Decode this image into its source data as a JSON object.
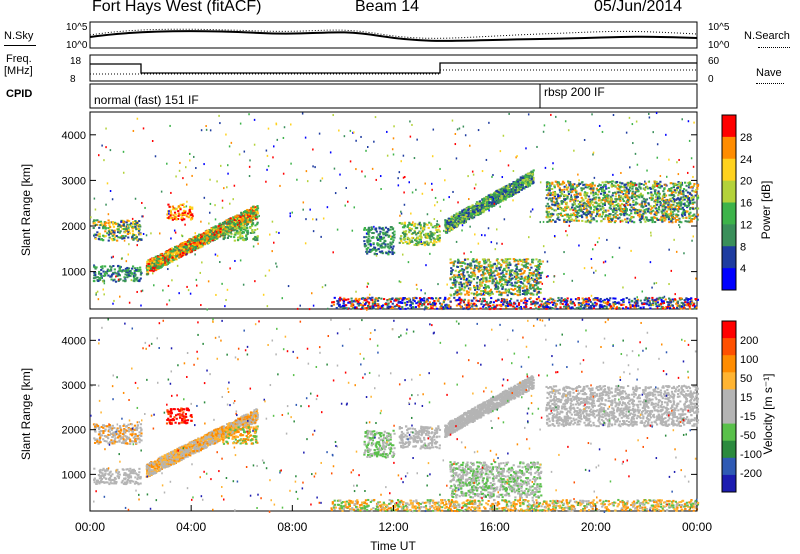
{
  "header": {
    "station": "Fort Hays West (fitACF)",
    "beam": "Beam 14",
    "date": "05/Jun/2014"
  },
  "strip_labels": {
    "nsky": "N.Sky",
    "nsearch": "N.Search",
    "freq": "Freq.",
    "freq_unit": "[MHz]",
    "nave": "Nave",
    "cpid": "CPID",
    "noise_ticks": [
      "10^5",
      "10^0"
    ],
    "freq_ticks": [
      "18",
      "8"
    ],
    "nave_ticks": [
      "60",
      "0"
    ],
    "cpid_modes": [
      "normal (fast) 151 IF",
      "rbsp 200 IF"
    ]
  },
  "colors": {
    "power": [
      "#0000ff",
      "#1e3ca0",
      "#3a8f5a",
      "#3db34a",
      "#b3d23a",
      "#ffd21e",
      "#ff8c00",
      "#ff0000"
    ],
    "velocity": [
      "#1c1cb0",
      "#2f5ab4",
      "#2b8a3e",
      "#59c04a",
      "#b4b4b4",
      "#b4b4b4",
      "#ffb432",
      "#ff8c00",
      "#ff5000",
      "#ff0000"
    ]
  },
  "chart_data": [
    {
      "type": "heatmap",
      "panel": "power",
      "ylabel": "Slant Range [km]",
      "xlim": [
        0,
        24
      ],
      "ylim": [
        180,
        4500
      ],
      "yticks": [
        1000,
        2000,
        3000,
        4000
      ],
      "colorbar": {
        "label": "Power [dB]",
        "range": [
          0,
          32
        ],
        "ticks": [
          4,
          8,
          12,
          16,
          20,
          24,
          28
        ]
      }
    },
    {
      "type": "heatmap",
      "panel": "velocity",
      "ylabel": "Slant Range [km]",
      "xlabel": "Time UT",
      "xlim": [
        0,
        24
      ],
      "xticks": [
        "00:00",
        "04:00",
        "08:00",
        "12:00",
        "16:00",
        "20:00",
        "00:00"
      ],
      "ylim": [
        180,
        4500
      ],
      "yticks": [
        1000,
        2000,
        3000,
        4000
      ],
      "colorbar": {
        "label": "Velocity [m s⁻¹]",
        "ticks": [
          "200",
          "100",
          "50",
          "15",
          "-15",
          "-50",
          "-100",
          "-200"
        ]
      }
    }
  ]
}
